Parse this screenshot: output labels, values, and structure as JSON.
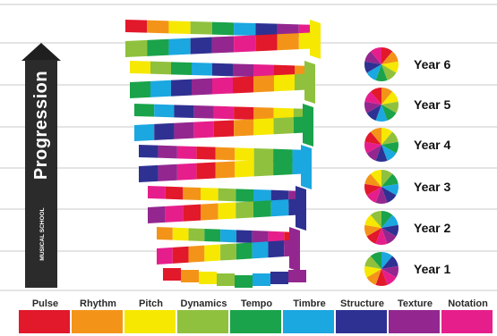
{
  "arrow": {
    "label": "Progression"
  },
  "logo": {
    "text": "MUSICAL SCHOOL"
  },
  "elements": [
    {
      "name": "Pulse",
      "color": "#e2182b"
    },
    {
      "name": "Rhythm",
      "color": "#f39419"
    },
    {
      "name": "Pitch",
      "color": "#f6e800"
    },
    {
      "name": "Dynamics",
      "color": "#8fc13e"
    },
    {
      "name": "Tempo",
      "color": "#1aa34a"
    },
    {
      "name": "Timbre",
      "color": "#1ba7e0"
    },
    {
      "name": "Structure",
      "color": "#2e3192"
    },
    {
      "name": "Texture",
      "color": "#93278f"
    },
    {
      "name": "Notation",
      "color": "#e61e8c"
    }
  ],
  "years": [
    "Year 6",
    "Year 5",
    "Year 4",
    "Year 3",
    "Year 2",
    "Year 1"
  ]
}
